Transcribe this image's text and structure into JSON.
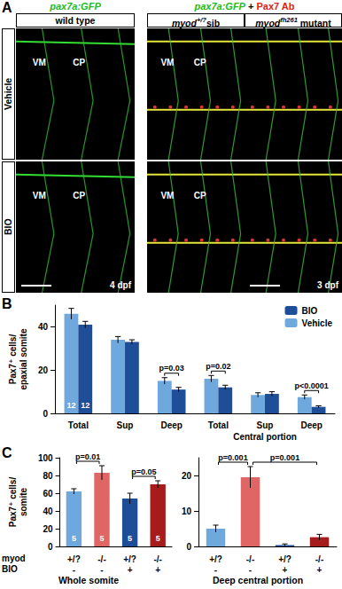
{
  "panel_labels": [
    "A",
    "B",
    "C"
  ],
  "panel_a": {
    "headers": [
      [
        {
          "text": "pax7a:GFP",
          "color": "#22bb22",
          "italic": true
        }
      ],
      [
        {
          "text": "pax7a:GFP",
          "color": "#22bb22",
          "italic": true
        },
        {
          "text": " + ",
          "color": "#000000"
        },
        {
          "text": "Pax7 Ab",
          "color": "#e02020"
        }
      ]
    ],
    "columns": [
      [
        {
          "text": "wild type"
        }
      ],
      [
        {
          "text": "myod",
          "italic": true
        },
        {
          "text": "+/?",
          "sup": true,
          "italic": true
        },
        {
          "text": "sib"
        }
      ],
      [
        {
          "text": "myod",
          "italic": true
        },
        {
          "text": "fh261",
          "sup": true,
          "italic": true
        },
        {
          "text": " mutant"
        }
      ]
    ],
    "rows": [
      "Vehicle",
      "BIO"
    ],
    "image_labels": [
      [
        [
          "VM",
          "CP"
        ],
        [
          "VM",
          "CP"
        ],
        []
      ],
      [
        [
          "VM",
          "CP"
        ],
        [
          "VM",
          "CP"
        ],
        []
      ]
    ],
    "stages": [
      {
        "text": "4 dpf",
        "row": 1,
        "col": 0
      },
      {
        "text": "3 dpf",
        "row": 1,
        "col": 2
      }
    ]
  },
  "chart_data": [
    {
      "type": "bar",
      "y_label": "Pax7⁺ cells/\nepaxial somite",
      "categories": [
        "Total",
        "Sup",
        "Deep",
        "Total",
        "Sup",
        "Deep"
      ],
      "groups": [
        {
          "label": "Central portion",
          "start": 3,
          "end": 5
        }
      ],
      "series": [
        {
          "name": "Vehicle",
          "color": "#6fa8dc",
          "values": [
            46,
            34,
            15,
            16,
            8.5,
            7.5
          ],
          "errors": [
            2.5,
            1.5,
            1.5,
            1.5,
            1,
            1
          ],
          "n": [
            12,
            null,
            null,
            null,
            null,
            null
          ]
        },
        {
          "name": "BIO",
          "color": "#1f4e99",
          "values": [
            41,
            33,
            11,
            12,
            9,
            3
          ],
          "errors": [
            1.5,
            1,
            1,
            1,
            1,
            0.5
          ],
          "n": [
            12,
            null,
            null,
            null,
            null,
            null
          ]
        }
      ],
      "ylim": [
        0,
        50
      ],
      "yticks": [
        0,
        20,
        40
      ],
      "grid": false,
      "legend": "top-right",
      "annotations": [
        {
          "text": "p=0.03",
          "from": 2,
          "to": 2
        },
        {
          "text": "p=0.02",
          "from": 3,
          "to": 3
        },
        {
          "text": "p<0.0001",
          "from": 5,
          "to": 5
        }
      ]
    },
    {
      "type": "bar",
      "title": "Whole somite",
      "y_label": "Pax7⁺ cells/\nsomite",
      "category_rows": [
        "myod",
        "BIO"
      ],
      "categories": [
        "+/?\n-",
        "-/-\n-",
        "+/?\n+",
        "-/-\n+"
      ],
      "values": [
        62,
        83,
        54,
        70
      ],
      "errors": [
        3,
        8,
        6,
        4
      ],
      "n": [
        5,
        5,
        5,
        5
      ],
      "colors": [
        "#6fa8dc",
        "#e06666",
        "#1f4e99",
        "#a61c1c"
      ],
      "ylim": [
        0,
        100
      ],
      "yticks": [
        0,
        20,
        40,
        60,
        80,
        100
      ],
      "grid": false,
      "annotations": [
        {
          "text": "p=0.01",
          "from": 0,
          "to": 1
        },
        {
          "text": "p=0.05",
          "from": 2,
          "to": 3
        }
      ]
    },
    {
      "type": "bar",
      "title": "Deep central portion",
      "categories": [
        "+/?\n-",
        "-/-\n-",
        "+/?\n+",
        "-/-\n+"
      ],
      "values": [
        5,
        19.5,
        0.4,
        2.6
      ],
      "errors": [
        1,
        3,
        0.3,
        0.8
      ],
      "colors": [
        "#6fa8dc",
        "#e06666",
        "#1f4e99",
        "#a61c1c"
      ],
      "ylim": [
        0,
        25
      ],
      "yticks": [
        0,
        10,
        20
      ],
      "grid": false,
      "annotations": [
        {
          "text": "p=0.001",
          "from": 0,
          "to": 1
        },
        {
          "text": "p=0.001",
          "from": 1,
          "to": 3
        }
      ]
    }
  ]
}
